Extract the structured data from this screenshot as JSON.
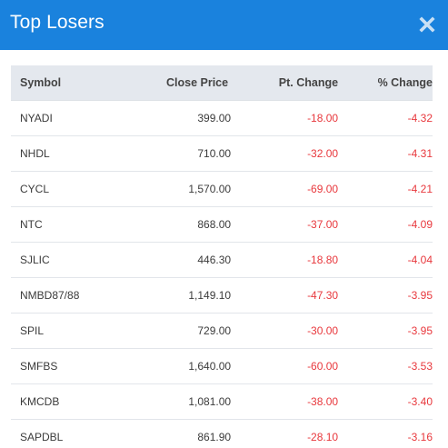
{
  "modal": {
    "title": "Top Losers",
    "close_icon": "close-icon",
    "header_color": "#1a82dd"
  },
  "table": {
    "columns": {
      "symbol": "Symbol",
      "close_price": "Close Price",
      "pt_change": "Pt. Change",
      "pct_change": "% Change"
    },
    "rows": [
      {
        "symbol": "NYADI",
        "close_price": "399.00",
        "pt_change": "-18.00",
        "pct_change": "-4.32"
      },
      {
        "symbol": "NHDL",
        "close_price": "710.00",
        "pt_change": "-32.00",
        "pct_change": "-4.31"
      },
      {
        "symbol": "CYCL",
        "close_price": "1,570.00",
        "pt_change": "-69.00",
        "pct_change": "-4.21"
      },
      {
        "symbol": "NTC",
        "close_price": "868.00",
        "pt_change": "-37.00",
        "pct_change": "-4.09"
      },
      {
        "symbol": "SJLIC",
        "close_price": "446.30",
        "pt_change": "-18.80",
        "pct_change": "-4.04"
      },
      {
        "symbol": "NMBD87/88",
        "close_price": "1,149.10",
        "pt_change": "-47.30",
        "pct_change": "-3.95"
      },
      {
        "symbol": "SPIL",
        "close_price": "729.00",
        "pt_change": "-30.00",
        "pct_change": "-3.95"
      },
      {
        "symbol": "SMFBS",
        "close_price": "1,640.00",
        "pt_change": "-60.00",
        "pct_change": "-3.53"
      },
      {
        "symbol": "KMCDB",
        "close_price": "1,081.00",
        "pt_change": "-38.00",
        "pct_change": "-3.40"
      },
      {
        "symbol": "SAPDBL",
        "close_price": "861.90",
        "pt_change": "-28.10",
        "pct_change": "-3.16"
      }
    ],
    "negative_color": "#e8383d"
  }
}
